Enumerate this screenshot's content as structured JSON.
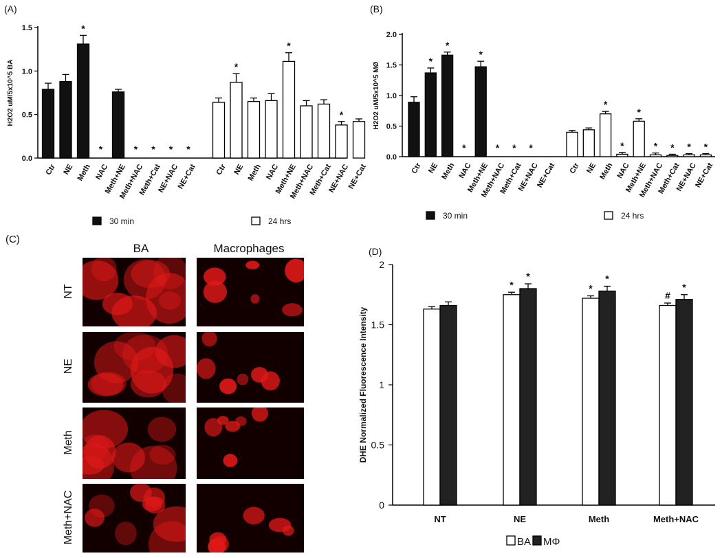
{
  "panels": {
    "A": {
      "label": "(A)",
      "chart_data": {
        "type": "bar",
        "ylabel": "H2O2 uM/5x10^5 BA",
        "ylim": [
          0,
          1.5
        ],
        "yticks": [
          0.0,
          0.5,
          1.0,
          1.5
        ],
        "yticklabels": [
          "0.0",
          "0.5",
          "1.0",
          "1.5"
        ],
        "legend_position": "bottom",
        "groups": [
          {
            "name": "30 min",
            "fill": "#111111",
            "categories": [
              "Ctr",
              "NE",
              "Meth",
              "NAC",
              "Meth+NE",
              "Meth+NAC",
              "Meth+Cat",
              "NE+NAC",
              "NE+Cat"
            ],
            "values": [
              0.79,
              0.88,
              1.31,
              0,
              0.76,
              0,
              0,
              0,
              0
            ],
            "errors": [
              0.07,
              0.08,
              0.1,
              0,
              0.03,
              0,
              0,
              0,
              0
            ],
            "stars": [
              "",
              "",
              "*",
              "*",
              "",
              "*",
              "*",
              "*",
              "*"
            ]
          },
          {
            "name": "24 hrs",
            "fill": "#ffffff",
            "categories": [
              "Ctr",
              "NE",
              "Meth",
              "NAC",
              "Meth+NE",
              "Meth+NAC",
              "Meth+Cat",
              "NE+NAC",
              "NE+Cat"
            ],
            "values": [
              0.64,
              0.87,
              0.65,
              0.66,
              1.11,
              0.6,
              0.62,
              0.38,
              0.42
            ],
            "errors": [
              0.05,
              0.1,
              0.04,
              0.08,
              0.1,
              0.06,
              0.05,
              0.04,
              0.03
            ],
            "stars": [
              "",
              "*",
              "",
              "",
              "*",
              "",
              "",
              "*",
              ""
            ]
          }
        ]
      }
    },
    "B": {
      "label": "(B)",
      "chart_data": {
        "type": "bar",
        "ylabel": "H2O2 uM/5x10^5 MØ",
        "ylim": [
          0,
          2.0
        ],
        "yticks": [
          0.0,
          0.5,
          1.0,
          1.5,
          2.0
        ],
        "yticklabels": [
          "0.0",
          "0.5",
          "1.0",
          "1.5",
          "2.0"
        ],
        "legend_position": "bottom",
        "groups": [
          {
            "name": "30 min",
            "fill": "#111111",
            "categories": [
              "Ctr",
              "NE",
              "Meth",
              "NAC",
              "Meth+NE",
              "Meth+NAC",
              "Meth+Cat",
              "NE+NAC",
              "NE+Cat"
            ],
            "values": [
              0.89,
              1.37,
              1.66,
              0,
              1.47,
              0,
              0,
              0,
              0
            ],
            "errors": [
              0.09,
              0.08,
              0.05,
              0,
              0.09,
              0,
              0,
              0,
              0
            ],
            "stars": [
              "",
              "*",
              "*",
              "*",
              "*",
              "*",
              "*",
              "*",
              ""
            ]
          },
          {
            "name": "24 hrs",
            "fill": "#ffffff",
            "categories": [
              "Ctr",
              "NE",
              "Meth",
              "NAC",
              "Meth+NE",
              "Meth+NAC",
              "Meth+Cat",
              "NE+NAC",
              "NE+Cat"
            ],
            "values": [
              0.4,
              0.44,
              0.7,
              0.04,
              0.58,
              0.03,
              0.02,
              0.03,
              0.03
            ],
            "errors": [
              0.03,
              0.03,
              0.04,
              0.03,
              0.04,
              0.03,
              0.02,
              0.02,
              0.02
            ],
            "stars": [
              "",
              "",
              "*",
              "*",
              "*",
              "*",
              "*",
              "*",
              "*"
            ]
          }
        ]
      }
    },
    "C": {
      "label": "(C)",
      "columns": [
        "BA",
        "Macrophages"
      ],
      "rows": [
        "NT",
        "NE",
        "Meth",
        "Meth+NAC"
      ],
      "stain_color": "#e01818"
    },
    "D": {
      "label": "(D)",
      "chart_data": {
        "type": "bar",
        "ylabel": "DHE Normalized Fluorescence Intensity",
        "ylim": [
          0,
          2
        ],
        "yticks": [
          0,
          0.5,
          1,
          1.5,
          2
        ],
        "yticklabels": [
          "0",
          "0.5",
          "1",
          "1.5",
          "2"
        ],
        "categories": [
          "NT",
          "NE",
          "Meth",
          "Meth+NAC"
        ],
        "legend_position": "bottom",
        "series": [
          {
            "name": "BA",
            "fill": "#ffffff",
            "values": [
              1.63,
              1.75,
              1.72,
              1.66
            ],
            "errors": [
              0.02,
              0.02,
              0.02,
              0.02
            ],
            "marks": [
              "",
              "*",
              "*",
              "#"
            ]
          },
          {
            "name": "MΦ",
            "fill": "#222222",
            "values": [
              1.66,
              1.8,
              1.78,
              1.71
            ],
            "errors": [
              0.03,
              0.04,
              0.04,
              0.04
            ],
            "marks": [
              "",
              "*",
              "*",
              "*"
            ]
          }
        ]
      }
    }
  }
}
